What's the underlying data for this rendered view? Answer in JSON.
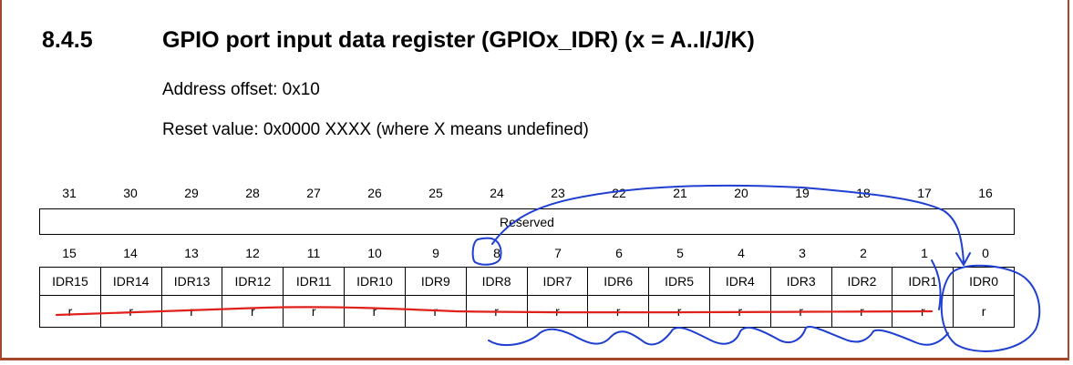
{
  "section": {
    "number": "8.4.5",
    "title": "GPIO port input data register (GPIOx_IDR) (x = A..I/J/K)"
  },
  "address_offset": "Address offset: 0x10",
  "reset_value": "Reset value: 0x0000 XXXX (where X means undefined)",
  "register": {
    "upper_bits": [
      "31",
      "30",
      "29",
      "28",
      "27",
      "26",
      "25",
      "24",
      "23",
      "22",
      "21",
      "20",
      "19",
      "18",
      "17",
      "16"
    ],
    "reserved_label": "Reserved",
    "lower_bits": [
      "15",
      "14",
      "13",
      "12",
      "11",
      "10",
      "9",
      "8",
      "7",
      "6",
      "5",
      "4",
      "3",
      "2",
      "1",
      "0"
    ],
    "fields": [
      "IDR15",
      "IDR14",
      "IDR13",
      "IDR12",
      "IDR11",
      "IDR10",
      "IDR9",
      "IDR8",
      "IDR7",
      "IDR6",
      "IDR5",
      "IDR4",
      "IDR3",
      "IDR2",
      "IDR1",
      "IDR0"
    ],
    "access": [
      "r",
      "r",
      "r",
      "r",
      "r",
      "r",
      "r",
      "r",
      "r",
      "r",
      "r",
      "r",
      "r",
      "r",
      "r",
      "r"
    ]
  },
  "colors": {
    "frame": "#a6462e",
    "red_ink": "#e0201a",
    "blue_ink": "#1f3fd0"
  }
}
